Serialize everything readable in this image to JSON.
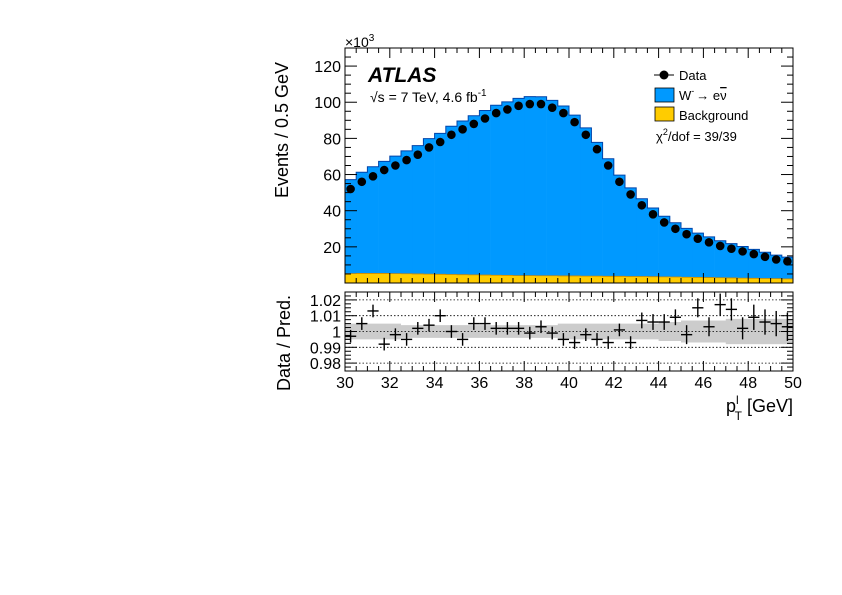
{
  "chart_data": [
    {
      "type": "bar",
      "panel": "main",
      "x_multiplier_label": "×10",
      "x_multiplier_exp": "3",
      "ylabel": "Events /  0.5 GeV",
      "xlim": [
        30,
        50
      ],
      "ylim": [
        0,
        130
      ],
      "yticks": [
        "20",
        "40",
        "60",
        "80",
        "100",
        "120"
      ],
      "experiment": "ATLAS",
      "energy_label": "√s = 7 TeV, 4.6 fb",
      "energy_exp": "-1",
      "legend_position": "top-right",
      "legend": {
        "data": "Data",
        "signal_main": "W",
        "signal_sup": "-",
        "signal_rest": "→ e",
        "signal_nu": "ν",
        "background": "Background"
      },
      "chi2_text": "/dof = 39/39",
      "chi2_symbol": "χ",
      "chi2_exp": "2",
      "bin_width": 0.5,
      "bin_lo": [
        30,
        30.5,
        31,
        31.5,
        32,
        32.5,
        33,
        33.5,
        34,
        34.5,
        35,
        35.5,
        36,
        36.5,
        37,
        37.5,
        38,
        38.5,
        39,
        39.5,
        40,
        40.5,
        41,
        41.5,
        42,
        42.5,
        43,
        43.5,
        44,
        44.5,
        45,
        45.5,
        46,
        46.5,
        47,
        47.5,
        48,
        48.5,
        49,
        49.5
      ],
      "series": [
        {
          "name": "W⁻→ eν̄",
          "color": "#0099ff",
          "values": [
            52,
            56,
            59,
            62,
            65,
            68,
            71,
            75,
            78,
            82,
            85,
            88,
            91,
            94,
            96,
            98,
            99,
            99,
            97,
            94,
            89,
            82,
            74,
            65,
            56,
            49,
            43,
            38,
            33.5,
            30,
            27,
            24.5,
            22.5,
            20.5,
            19,
            17.5,
            16,
            14.5,
            13,
            12
          ]
        },
        {
          "name": "Background",
          "color": "#ffcc00",
          "values": [
            5.2,
            5.3,
            5.3,
            5.3,
            5.2,
            5.1,
            5,
            4.9,
            4.8,
            4.7,
            4.6,
            4.5,
            4.4,
            4.3,
            4.2,
            4.1,
            4.1,
            4,
            4,
            3.9,
            3.9,
            3.8,
            3.8,
            3.7,
            3.7,
            3.6,
            3.6,
            3.5,
            3.4,
            3.3,
            3.2,
            3.1,
            3,
            2.9,
            2.8,
            2.7,
            2.6,
            2.5,
            2.4,
            2.3
          ]
        },
        {
          "name": "Data",
          "color": "#000000",
          "values": [
            52,
            56,
            59,
            62.5,
            65,
            68,
            71,
            75,
            78,
            82,
            85,
            88,
            91,
            94,
            96,
            98,
            99,
            99,
            97,
            94,
            89,
            82,
            74,
            65,
            56,
            49,
            43,
            38,
            33.5,
            30,
            27,
            24.5,
            22.5,
            20.5,
            19,
            17.5,
            16,
            14.5,
            13,
            12
          ]
        }
      ]
    },
    {
      "type": "scatter",
      "panel": "ratio",
      "ylabel": "Data / Pred.",
      "xlabel_main": "p",
      "xlabel_sup": "l",
      "xlabel_sub": "T",
      "xlabel_rest": " [GeV]",
      "xlim": [
        30,
        50
      ],
      "ylim": [
        0.975,
        1.025
      ],
      "yticks": [
        "0.98",
        "0.99",
        "1",
        "1.01",
        "1.02"
      ],
      "xticks": [
        "30",
        "32",
        "34",
        "36",
        "38",
        "40",
        "42",
        "44",
        "46",
        "48",
        "50"
      ],
      "gridlines_y": [
        0.98,
        0.99,
        1.0,
        1.01,
        1.02
      ],
      "x": [
        30.25,
        30.75,
        31.25,
        31.75,
        32.25,
        32.75,
        33.25,
        33.75,
        34.25,
        34.75,
        35.25,
        35.75,
        36.25,
        36.75,
        37.25,
        37.75,
        38.25,
        38.75,
        39.25,
        39.75,
        40.25,
        40.75,
        41.25,
        41.75,
        42.25,
        42.75,
        43.25,
        43.75,
        44.25,
        44.75,
        45.25,
        45.75,
        46.25,
        46.75,
        47.25,
        47.75,
        48.25,
        48.75,
        49.25,
        49.75
      ],
      "ratio": [
        0.997,
        1.005,
        1.013,
        0.992,
        0.998,
        0.995,
        1.002,
        1.004,
        1.01,
        1.0,
        0.995,
        1.005,
        1.005,
        1.002,
        1.002,
        1.002,
        0.999,
        1.003,
        0.999,
        0.995,
        0.993,
        0.998,
        0.995,
        0.993,
        1.001,
        0.993,
        1.007,
        1.006,
        1.006,
        1.009,
        0.998,
        1.015,
        1.003,
        1.017,
        1.014,
        1.002,
        1.009,
        1.006,
        1.005,
        1.003
      ],
      "ratio_err": [
        0.004,
        0.004,
        0.004,
        0.004,
        0.004,
        0.004,
        0.004,
        0.004,
        0.004,
        0.004,
        0.004,
        0.004,
        0.004,
        0.004,
        0.004,
        0.004,
        0.004,
        0.004,
        0.004,
        0.004,
        0.004,
        0.004,
        0.004,
        0.004,
        0.004,
        0.004,
        0.005,
        0.005,
        0.005,
        0.005,
        0.006,
        0.006,
        0.006,
        0.007,
        0.007,
        0.007,
        0.008,
        0.008,
        0.008,
        0.009
      ],
      "band_lo": [
        0.995,
        0.995,
        0.995,
        0.995,
        0.995,
        0.996,
        0.996,
        0.996,
        0.996,
        0.996,
        0.996,
        0.996,
        0.996,
        0.996,
        0.996,
        0.996,
        0.996,
        0.996,
        0.996,
        0.995,
        0.995,
        0.995,
        0.995,
        0.995,
        0.995,
        0.995,
        0.995,
        0.995,
        0.994,
        0.994,
        0.993,
        0.993,
        0.993,
        0.993,
        0.992,
        0.992,
        0.992,
        0.992,
        0.992,
        0.992
      ],
      "band_hi": [
        1.005,
        1.005,
        1.005,
        1.005,
        1.005,
        1.004,
        1.004,
        1.004,
        1.004,
        1.004,
        1.004,
        1.004,
        1.004,
        1.004,
        1.004,
        1.004,
        1.004,
        1.004,
        1.004,
        1.005,
        1.005,
        1.005,
        1.005,
        1.005,
        1.005,
        1.005,
        1.005,
        1.005,
        1.006,
        1.006,
        1.007,
        1.007,
        1.007,
        1.007,
        1.008,
        1.008,
        1.008,
        1.008,
        1.008,
        1.008
      ]
    }
  ]
}
